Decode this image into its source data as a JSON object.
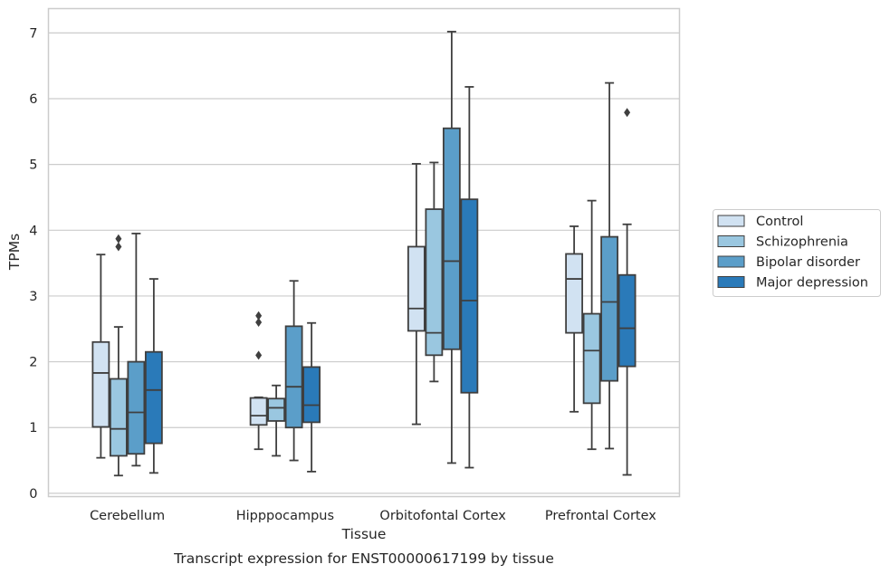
{
  "chart_data": {
    "type": "box",
    "xlabel": "Tissue",
    "ylabel": "TPMs",
    "caption": "Transcript expression for ENST00000617199 by tissue",
    "ylim": [
      -0.05,
      7.37
    ],
    "yticks": [
      0,
      1,
      2,
      3,
      4,
      5,
      6,
      7
    ],
    "grid": "horizontal",
    "legend_position": "right",
    "categories": [
      "Cerebellum",
      "Hipppocampus",
      "Orbitofontal Cortex",
      "Prefrontal Cortex"
    ],
    "series": [
      {
        "name": "Control",
        "color": "#d1e2f2",
        "boxes": [
          {
            "whisker_low": 0.54,
            "q1": 1.01,
            "median": 1.83,
            "q3": 2.3,
            "whisker_high": 3.63,
            "outliers": []
          },
          {
            "whisker_low": 0.67,
            "q1": 1.04,
            "median": 1.18,
            "q3": 1.45,
            "whisker_high": 1.46,
            "outliers": [
              2.1,
              2.6,
              2.7
            ]
          },
          {
            "whisker_low": 1.05,
            "q1": 2.47,
            "median": 2.81,
            "q3": 3.75,
            "whisker_high": 5.01,
            "outliers": []
          },
          {
            "whisker_low": 1.24,
            "q1": 2.44,
            "median": 3.26,
            "q3": 3.64,
            "whisker_high": 4.06,
            "outliers": []
          }
        ]
      },
      {
        "name": "Schizophrenia",
        "color": "#9ac7e0",
        "boxes": [
          {
            "whisker_low": 0.27,
            "q1": 0.57,
            "median": 0.98,
            "q3": 1.74,
            "whisker_high": 2.53,
            "outliers": [
              3.75,
              3.87
            ]
          },
          {
            "whisker_low": 0.57,
            "q1": 1.1,
            "median": 1.3,
            "q3": 1.44,
            "whisker_high": 1.64,
            "outliers": []
          },
          {
            "whisker_low": 1.7,
            "q1": 2.1,
            "median": 2.44,
            "q3": 4.32,
            "whisker_high": 5.03,
            "outliers": []
          },
          {
            "whisker_low": 0.67,
            "q1": 1.37,
            "median": 2.17,
            "q3": 2.73,
            "whisker_high": 4.45,
            "outliers": []
          }
        ]
      },
      {
        "name": "Bipolar disorder",
        "color": "#5b9ec9",
        "boxes": [
          {
            "whisker_low": 0.42,
            "q1": 0.6,
            "median": 1.23,
            "q3": 2.0,
            "whisker_high": 3.95,
            "outliers": []
          },
          {
            "whisker_low": 0.5,
            "q1": 1.0,
            "median": 1.62,
            "q3": 2.54,
            "whisker_high": 3.23,
            "outliers": []
          },
          {
            "whisker_low": 0.46,
            "q1": 2.19,
            "median": 3.53,
            "q3": 5.55,
            "whisker_high": 7.02,
            "outliers": []
          },
          {
            "whisker_low": 0.68,
            "q1": 1.71,
            "median": 2.91,
            "q3": 3.9,
            "whisker_high": 6.24,
            "outliers": []
          }
        ]
      },
      {
        "name": "Major depression",
        "color": "#2a7ab9",
        "boxes": [
          {
            "whisker_low": 0.31,
            "q1": 0.76,
            "median": 1.57,
            "q3": 2.15,
            "whisker_high": 3.26,
            "outliers": []
          },
          {
            "whisker_low": 0.33,
            "q1": 1.08,
            "median": 1.34,
            "q3": 1.92,
            "whisker_high": 2.59,
            "outliers": []
          },
          {
            "whisker_low": 0.39,
            "q1": 1.53,
            "median": 2.93,
            "q3": 4.47,
            "whisker_high": 6.18,
            "outliers": []
          },
          {
            "whisker_low": 0.28,
            "q1": 1.93,
            "median": 2.51,
            "q3": 3.32,
            "whisker_high": 4.09,
            "outliers": [
              5.79
            ]
          }
        ]
      }
    ]
  }
}
